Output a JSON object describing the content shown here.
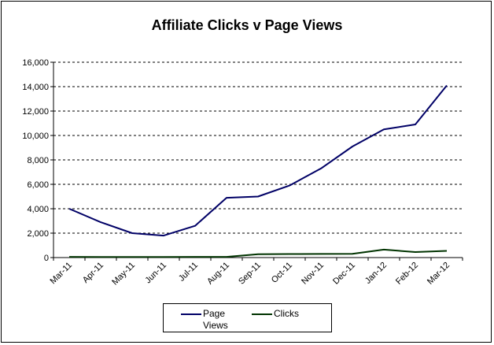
{
  "chart_data": {
    "type": "line",
    "title": "Affiliate Clicks v Page Views",
    "xlabel": "",
    "ylabel": "",
    "categories": [
      "Mar-11",
      "Apr-11",
      "May-11",
      "Jun-11",
      "Jul-11",
      "Aug-11",
      "Sep-11",
      "Oct-11",
      "Nov-11",
      "Dec-11",
      "Jan-12",
      "Feb-12",
      "Mar-12"
    ],
    "ylim": [
      0,
      16000
    ],
    "yticks": [
      "0",
      "2,000",
      "4,000",
      "6,000",
      "8,000",
      "10,000",
      "12,000",
      "14,000",
      "16,000"
    ],
    "ytick_values": [
      0,
      2000,
      4000,
      6000,
      8000,
      10000,
      12000,
      14000,
      16000
    ],
    "grid": true,
    "legend_position": "bottom",
    "series": [
      {
        "name": "Page Views",
        "color": "#000066",
        "values": [
          4000,
          2900,
          2000,
          1800,
          2600,
          4900,
          5000,
          5900,
          7300,
          9100,
          10500,
          10900,
          14100
        ]
      },
      {
        "name": "Clicks",
        "color": "#003300",
        "values": [
          60,
          50,
          50,
          50,
          60,
          60,
          280,
          290,
          300,
          310,
          650,
          450,
          550
        ]
      }
    ]
  }
}
